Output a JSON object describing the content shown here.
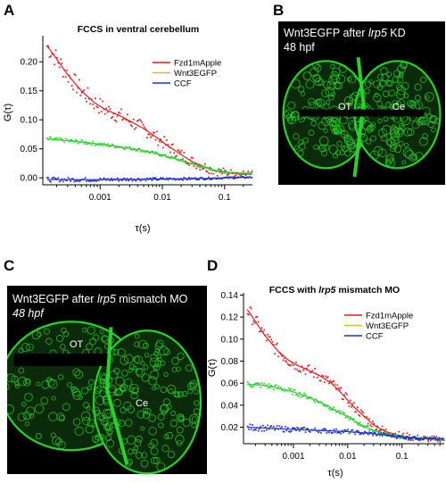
{
  "panels": {
    "A": {
      "letter": "A"
    },
    "B": {
      "letter": "B",
      "caption_pre": "Wnt3EGFP after ",
      "caption_gene": "lrp5",
      "caption_post": " KD",
      "stage": "48 hpf",
      "region1": "OT",
      "region2": "Ce"
    },
    "C": {
      "letter": "C",
      "caption_pre": "Wnt3EGFP after ",
      "caption_gene": "lrp5",
      "caption_post": " mismatch MO",
      "stage": "48 hpf",
      "region1": "OT",
      "region2": "Ce"
    },
    "D": {
      "letter": "D"
    }
  },
  "colors": {
    "red": "#e41a1c",
    "green": "#2dd02d",
    "blue": "#1f2fd0",
    "yellow": "#d6c21a",
    "micro_green": "#28d228"
  },
  "chart_data": [
    {
      "type": "scatter",
      "title": "FCCS in ventral cerebellum",
      "xlabel": "τ(s)",
      "ylabel": "G(τ)",
      "xscale": "log",
      "xlim": [
        0.00012,
        0.28
      ],
      "ylim": [
        -0.012,
        0.245
      ],
      "xticks": [
        0.001,
        0.01,
        0.1
      ],
      "xtick_labels": [
        "0.001",
        "0.01",
        "0.1"
      ],
      "yticks": [
        0.0,
        0.05,
        0.1,
        0.15,
        0.2
      ],
      "ytick_labels": [
        "0.00",
        "0.05",
        "0.10",
        "0.15",
        "0.20"
      ],
      "legend": [
        "Fzd1mApple",
        "Wnt3EGFP",
        "CCF"
      ],
      "legend_position": "top-right",
      "series": [
        {
          "name": "Fzd1mApple",
          "color": "#e41a1c",
          "points": [
            [
              0.00014,
              0.228
            ],
            [
              0.0002,
              0.205
            ],
            [
              0.0003,
              0.178
            ],
            [
              0.0005,
              0.15
            ],
            [
              0.0008,
              0.13
            ],
            [
              0.0012,
              0.118
            ],
            [
              0.002,
              0.108
            ],
            [
              0.003,
              0.098
            ],
            [
              0.005,
              0.085
            ],
            [
              0.008,
              0.07
            ],
            [
              0.012,
              0.056
            ],
            [
              0.02,
              0.04
            ],
            [
              0.03,
              0.028
            ],
            [
              0.05,
              0.018
            ],
            [
              0.08,
              0.011
            ],
            [
              0.12,
              0.008
            ],
            [
              0.2,
              0.006
            ],
            [
              0.25,
              0.006
            ]
          ]
        },
        {
          "name": "Wnt3EGFP",
          "color": "#2dd02d",
          "points": [
            [
              0.00014,
              0.067
            ],
            [
              0.0003,
              0.064
            ],
            [
              0.0006,
              0.061
            ],
            [
              0.001,
              0.058
            ],
            [
              0.002,
              0.054
            ],
            [
              0.004,
              0.049
            ],
            [
              0.008,
              0.042
            ],
            [
              0.015,
              0.034
            ],
            [
              0.03,
              0.024
            ],
            [
              0.06,
              0.015
            ],
            [
              0.1,
              0.01
            ],
            [
              0.2,
              0.008
            ],
            [
              0.25,
              0.008
            ]
          ]
        },
        {
          "name": "CCF",
          "color": "#1f2fd0",
          "points": [
            [
              0.00014,
              -0.003
            ],
            [
              0.001,
              -0.003
            ],
            [
              0.01,
              -0.002
            ],
            [
              0.05,
              -0.001
            ],
            [
              0.1,
              0.0
            ],
            [
              0.25,
              0.001
            ]
          ]
        }
      ]
    },
    {
      "type": "scatter",
      "title_pre": "FCCS with ",
      "title_gene": "lrp5",
      "title_post": " mismatch MO",
      "xlabel": "τ(s)",
      "ylabel": "G(τ)",
      "xscale": "log",
      "xlim": [
        0.00012,
        0.6
      ],
      "ylim": [
        0.005,
        0.142
      ],
      "xticks": [
        0.001,
        0.01,
        0.1
      ],
      "xtick_labels": [
        "0.001",
        "0.01",
        "0.1"
      ],
      "yticks": [
        0.02,
        0.04,
        0.06,
        0.08,
        0.1,
        0.12,
        0.14
      ],
      "ytick_labels": [
        "0.02",
        "0.04",
        "0.06",
        "0.08",
        "0.10",
        "0.12",
        "0.14"
      ],
      "legend": [
        "Fzd1mApple",
        "Wnt3EGFP",
        "CCF"
      ],
      "legend_position": "top-right",
      "series": [
        {
          "name": "Fzd1mApple",
          "color": "#e41a1c",
          "points": [
            [
              0.00014,
              0.127
            ],
            [
              0.0002,
              0.116
            ],
            [
              0.0003,
              0.103
            ],
            [
              0.0005,
              0.09
            ],
            [
              0.0008,
              0.081
            ],
            [
              0.0012,
              0.076
            ],
            [
              0.002,
              0.071
            ],
            [
              0.003,
              0.067
            ],
            [
              0.005,
              0.06
            ],
            [
              0.008,
              0.05
            ],
            [
              0.012,
              0.04
            ],
            [
              0.02,
              0.03
            ],
            [
              0.03,
              0.022
            ],
            [
              0.05,
              0.016
            ],
            [
              0.1,
              0.012
            ],
            [
              0.2,
              0.01
            ],
            [
              0.5,
              0.009
            ]
          ]
        },
        {
          "name": "Wnt3EGFP",
          "color": "#2dd02d",
          "points": [
            [
              0.00014,
              0.059
            ],
            [
              0.0003,
              0.058
            ],
            [
              0.0006,
              0.055
            ],
            [
              0.001,
              0.052
            ],
            [
              0.002,
              0.047
            ],
            [
              0.004,
              0.04
            ],
            [
              0.008,
              0.032
            ],
            [
              0.015,
              0.024
            ],
            [
              0.03,
              0.017
            ],
            [
              0.06,
              0.013
            ],
            [
              0.1,
              0.011
            ],
            [
              0.2,
              0.01
            ],
            [
              0.5,
              0.009
            ]
          ]
        },
        {
          "name": "CCF",
          "color": "#1f2fd0",
          "points": [
            [
              0.00014,
              0.02
            ],
            [
              0.001,
              0.018
            ],
            [
              0.01,
              0.016
            ],
            [
              0.05,
              0.013
            ],
            [
              0.1,
              0.011
            ],
            [
              0.2,
              0.01
            ],
            [
              0.5,
              0.009
            ]
          ]
        }
      ]
    }
  ]
}
